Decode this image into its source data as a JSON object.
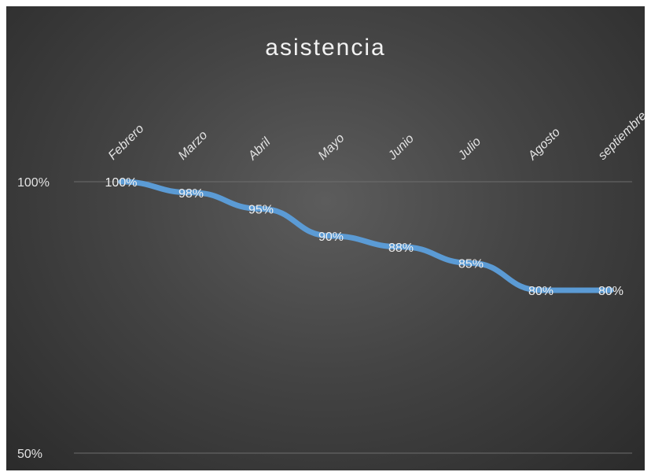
{
  "chart_data": {
    "type": "line",
    "title": "asistencia",
    "categories": [
      "Febrero",
      "Marzo",
      "Abril",
      "Mayo",
      "Junio",
      "Julio",
      "Agosto",
      "septiembre"
    ],
    "series": [
      {
        "values": [
          1.0,
          0.98,
          0.95,
          0.9,
          0.88,
          0.85,
          0.8,
          0.8
        ],
        "color": "#5b9bd5"
      }
    ],
    "data_labels": [
      "100%",
      "98%",
      "95%",
      "90%",
      "88%",
      "85%",
      "80%",
      "80%"
    ],
    "ylim": [
      0.5,
      1.0
    ],
    "yticks": [
      {
        "value": 1.0,
        "label": "100%"
      },
      {
        "value": 0.5,
        "label": "50%"
      }
    ],
    "grid": true,
    "legend": "none",
    "xlabel": "",
    "ylabel": ""
  }
}
